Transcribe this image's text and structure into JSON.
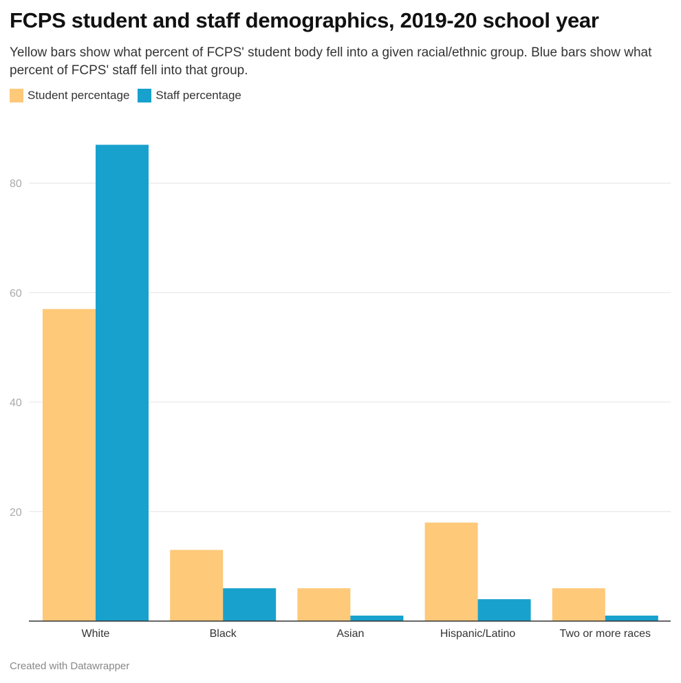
{
  "title": "FCPS student and staff demographics, 2019-20 school year",
  "subtitle": "Yellow bars show what percent of FCPS' student body fell into a given racial/ethnic group. Blue bars show what percent of FCPS' staff fell into that group.",
  "footer": "Created with Datawrapper",
  "legend": [
    {
      "label": "Student percentage",
      "color": "#fec979"
    },
    {
      "label": "Staff percentage",
      "color": "#18a1cd"
    }
  ],
  "chart_data": {
    "type": "bar",
    "categories": [
      "White",
      "Black",
      "Asian",
      "Hispanic/Latino",
      "Two or more races"
    ],
    "series": [
      {
        "name": "Student percentage",
        "color": "#fec979",
        "values": [
          57,
          13,
          6,
          18,
          6
        ]
      },
      {
        "name": "Staff percentage",
        "color": "#18a1cd",
        "values": [
          87,
          6,
          1,
          4,
          1
        ]
      }
    ],
    "y_ticks": [
      20,
      40,
      60,
      80
    ],
    "ylim": [
      0,
      100
    ],
    "grid": true,
    "legend_position": "top-left"
  }
}
